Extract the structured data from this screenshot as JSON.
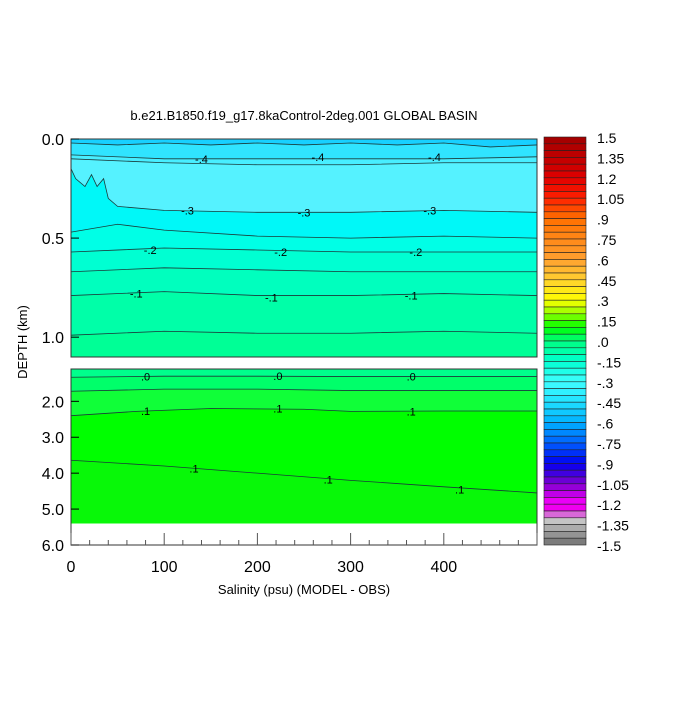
{
  "chart_data": {
    "type": "heatmap",
    "subtype": "filled-contour",
    "title": "b.e21.B1850.f19_g17.8kaControl-2deg.001 GLOBAL BASIN",
    "xlabel": "Salinity (psu) (MODEL - OBS)",
    "ylabel": "DEPTH (km)",
    "xlim": [
      0,
      500
    ],
    "xticks": [
      0,
      100,
      200,
      300,
      400
    ],
    "xtick_labels": [
      "0",
      "100",
      "200",
      "300",
      "400"
    ],
    "top_panel": {
      "ylim": [
        0,
        1.1
      ],
      "yticks": [
        0,
        0.5,
        1.0
      ],
      "ytick_labels": [
        "0.0",
        "0.5",
        "1.0"
      ],
      "surface_color": "#18d0ff",
      "contours": [
        {
          "level": -0.45,
          "fill_below": "#30e4ff",
          "points": [
            [
              0,
              0.02
            ],
            [
              50,
              0.03
            ],
            [
              100,
              0.02
            ],
            [
              150,
              0.03
            ],
            [
              200,
              0.02
            ],
            [
              250,
              0.03
            ],
            [
              300,
              0.02
            ],
            [
              350,
              0.03
            ],
            [
              400,
              0.02
            ],
            [
              450,
              0.04
            ],
            [
              500,
              0.03
            ]
          ]
        },
        {
          "level": -0.4,
          "fill_below": "#48eeff",
          "points": [
            [
              0,
              0.08
            ],
            [
              100,
              0.1
            ],
            [
              200,
              0.1
            ],
            [
              300,
              0.1
            ],
            [
              400,
              0.1
            ],
            [
              500,
              0.09
            ]
          ]
        },
        {
          "level": -0.35,
          "fill_below": "#55f2ff",
          "points": [
            [
              0,
              0.1
            ],
            [
              100,
              0.12
            ],
            [
              200,
              0.13
            ],
            [
              300,
              0.13
            ],
            [
              400,
              0.12
            ],
            [
              500,
              0.12
            ]
          ]
        },
        {
          "level": -0.3,
          "fill_below": "#00f8f8",
          "points": [
            [
              0,
              0.15
            ],
            [
              5,
              0.2
            ],
            [
              15,
              0.24
            ],
            [
              22,
              0.18
            ],
            [
              28,
              0.24
            ],
            [
              35,
              0.2
            ],
            [
              40,
              0.3
            ],
            [
              50,
              0.34
            ],
            [
              100,
              0.36
            ],
            [
              200,
              0.37
            ],
            [
              300,
              0.37
            ],
            [
              400,
              0.36
            ],
            [
              500,
              0.37
            ]
          ]
        },
        {
          "level": -0.25,
          "fill_below": "#00ffe6",
          "points": [
            [
              0,
              0.47
            ],
            [
              50,
              0.43
            ],
            [
              100,
              0.46
            ],
            [
              200,
              0.49
            ],
            [
              300,
              0.5
            ],
            [
              400,
              0.49
            ],
            [
              500,
              0.5
            ]
          ]
        },
        {
          "level": -0.2,
          "fill_below": "#00ffd2",
          "points": [
            [
              0,
              0.57
            ],
            [
              100,
              0.55
            ],
            [
              200,
              0.56
            ],
            [
              300,
              0.57
            ],
            [
              400,
              0.57
            ],
            [
              500,
              0.57
            ]
          ]
        },
        {
          "level": -0.15,
          "fill_below": "#00ffbe",
          "points": [
            [
              0,
              0.67
            ],
            [
              100,
              0.65
            ],
            [
              200,
              0.66
            ],
            [
              300,
              0.67
            ],
            [
              400,
              0.67
            ],
            [
              500,
              0.67
            ]
          ]
        },
        {
          "level": -0.1,
          "fill_below": "#00ffa8",
          "points": [
            [
              0,
              0.79
            ],
            [
              100,
              0.77
            ],
            [
              200,
              0.79
            ],
            [
              300,
              0.79
            ],
            [
              400,
              0.78
            ],
            [
              500,
              0.79
            ]
          ]
        },
        {
          "level": -0.05,
          "fill_below": "#00ff96",
          "points": [
            [
              0,
              0.99
            ],
            [
              100,
              0.97
            ],
            [
              200,
              0.98
            ],
            [
              300,
              0.98
            ],
            [
              400,
              0.97
            ],
            [
              500,
              0.98
            ]
          ]
        }
      ],
      "labels": [
        {
          "text": "-.4",
          "x": 140,
          "depth": 0.1
        },
        {
          "text": "-.4",
          "x": 265,
          "depth": 0.09
        },
        {
          "text": "-.4",
          "x": 390,
          "depth": 0.09
        },
        {
          "text": "-.3",
          "x": 125,
          "depth": 0.36
        },
        {
          "text": "-.3",
          "x": 250,
          "depth": 0.37
        },
        {
          "text": "-.3",
          "x": 385,
          "depth": 0.36
        },
        {
          "text": "-.2",
          "x": 85,
          "depth": 0.56
        },
        {
          "text": "-.2",
          "x": 225,
          "depth": 0.57
        },
        {
          "text": "-.2",
          "x": 370,
          "depth": 0.57
        },
        {
          "text": "-.1",
          "x": 70,
          "depth": 0.78
        },
        {
          "text": "-.1",
          "x": 215,
          "depth": 0.8
        },
        {
          "text": "-.1",
          "x": 365,
          "depth": 0.79
        }
      ]
    },
    "bottom_panel": {
      "ylim": [
        1.1,
        6.0
      ],
      "data_max_depth": 5.4,
      "yticks": [
        2,
        3,
        4,
        5,
        6
      ],
      "ytick_labels": [
        "2.0",
        "3.0",
        "4.0",
        "5.0",
        "6.0"
      ],
      "surface_color": "#00ff8c",
      "contours": [
        {
          "level": 0.0,
          "fill_below": "#00ff6a",
          "points": [
            [
              0,
              1.33
            ],
            [
              100,
              1.3
            ],
            [
              200,
              1.3
            ],
            [
              300,
              1.31
            ],
            [
              400,
              1.31
            ],
            [
              500,
              1.31
            ]
          ]
        },
        {
          "level": 0.05,
          "fill_below": "#10ff38",
          "points": [
            [
              0,
              1.72
            ],
            [
              100,
              1.66
            ],
            [
              200,
              1.66
            ],
            [
              300,
              1.7
            ],
            [
              400,
              1.7
            ],
            [
              500,
              1.7
            ]
          ]
        },
        {
          "level": 0.1,
          "fill_below": "#00ff00",
          "points": [
            [
              0,
              2.4
            ],
            [
              70,
              2.28
            ],
            [
              150,
              2.2
            ],
            [
              250,
              2.22
            ],
            [
              300,
              2.28
            ],
            [
              400,
              2.27
            ],
            [
              500,
              2.27
            ]
          ]
        },
        {
          "level": 0.1,
          "fill_below": "#08f808",
          "points": [
            [
              0,
              3.64
            ],
            [
              100,
              3.8
            ],
            [
              200,
              4.0
            ],
            [
              300,
              4.2
            ],
            [
              400,
              4.38
            ],
            [
              500,
              4.55
            ]
          ]
        }
      ],
      "labels": [
        {
          "text": ".0",
          "x": 80,
          "depth": 1.31
        },
        {
          "text": ".0",
          "x": 222,
          "depth": 1.3
        },
        {
          "text": ".0",
          "x": 365,
          "depth": 1.31
        },
        {
          "text": ".1",
          "x": 80,
          "depth": 2.27
        },
        {
          "text": ".1",
          "x": 222,
          "depth": 2.2
        },
        {
          "text": ".1",
          "x": 365,
          "depth": 2.28
        },
        {
          "text": ".1",
          "x": 132,
          "depth": 3.87
        },
        {
          "text": ".1",
          "x": 276,
          "depth": 4.17
        },
        {
          "text": ".1",
          "x": 417,
          "depth": 4.45
        }
      ]
    },
    "colorbar": {
      "min": -1.5,
      "max": 1.5,
      "step": 0.05,
      "labels": [
        "1.5",
        "1.35",
        "1.2",
        "1.05",
        ".9",
        ".75",
        ".6",
        ".45",
        ".3",
        ".15",
        ".0",
        "-.15",
        "-.3",
        "-.45",
        "-.6",
        "-.75",
        "-.9",
        "-1.05",
        "-1.2",
        "-1.35",
        "-1.5"
      ],
      "colormap": [
        [
          1.5,
          "#a00000"
        ],
        [
          1.2,
          "#e00000"
        ],
        [
          1.05,
          "#ff2000"
        ],
        [
          0.9,
          "#ff7000"
        ],
        [
          0.6,
          "#ffa030"
        ],
        [
          0.45,
          "#ffd030"
        ],
        [
          0.3,
          "#ffff00"
        ],
        [
          0.2,
          "#90ff00"
        ],
        [
          0.1,
          "#00ff00"
        ],
        [
          0.0,
          "#00ff80"
        ],
        [
          -0.15,
          "#00ffd0"
        ],
        [
          -0.3,
          "#40ffff"
        ],
        [
          -0.45,
          "#20e0ff"
        ],
        [
          -0.6,
          "#00b0ff"
        ],
        [
          -0.75,
          "#0060ff"
        ],
        [
          -0.9,
          "#0000f0"
        ],
        [
          -1.05,
          "#8000d0"
        ],
        [
          -1.2,
          "#ff00ff"
        ],
        [
          -1.25,
          "#e000e0"
        ],
        [
          -1.3,
          "#d0d0d0"
        ],
        [
          -1.5,
          "#707070"
        ]
      ]
    }
  }
}
